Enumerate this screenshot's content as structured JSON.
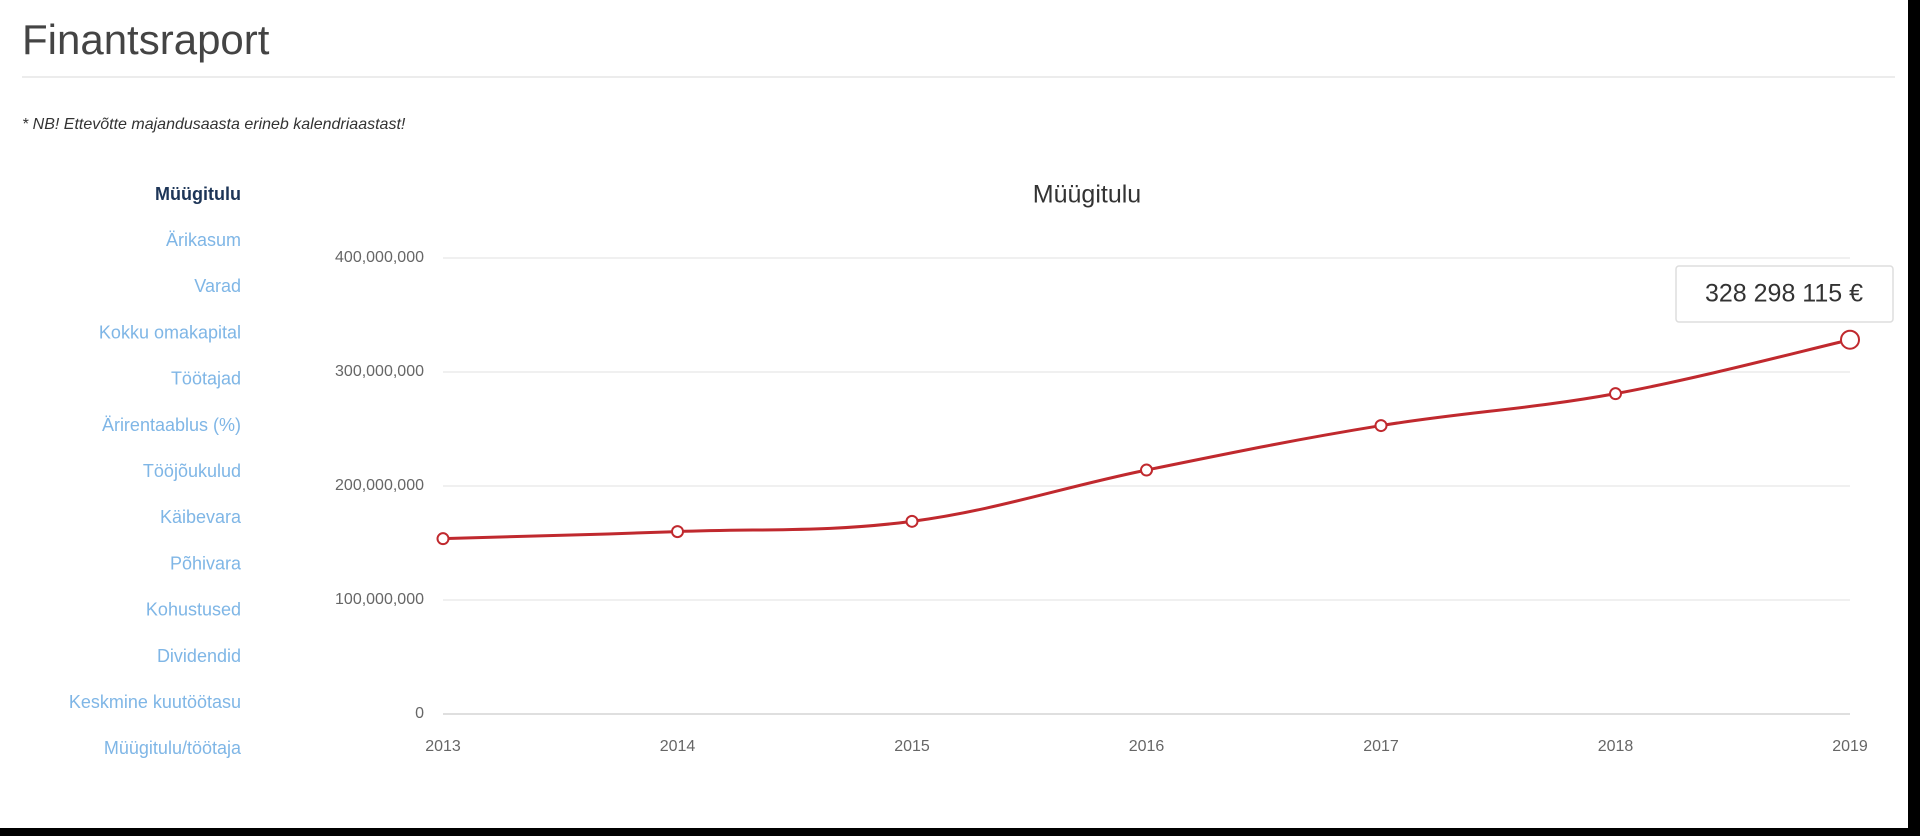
{
  "header": {
    "title": "Finantsraport",
    "note": "* NB! Ettevõtte majandusaasta erineb kalendriaastast!"
  },
  "menu": {
    "items": [
      "Müügitulu",
      "Ärikasum",
      "Varad",
      "Kokku omakapital",
      "Töötajad",
      "Ärirentaablus (%)",
      "Tööjõukulud",
      "Käibevara",
      "Põhivara",
      "Kohustused",
      "Dividendid",
      "Keskmine kuutöötasu",
      "Müügitulu/töötaja"
    ]
  },
  "chart_data": {
    "type": "line",
    "title": "Müügitulu",
    "categories": [
      "2013",
      "2014",
      "2015",
      "2016",
      "2017",
      "2018",
      "2019"
    ],
    "values": [
      153800000,
      160000000,
      169000000,
      214000000,
      253000000,
      281000000,
      328298115
    ],
    "value_labels": [
      null,
      null,
      null,
      null,
      null,
      null,
      "328 298 115 €"
    ],
    "color": "#c0292e",
    "ylim": [
      0,
      400000000
    ],
    "yticks": [
      0,
      {
        "value": 100000000,
        "label": "100,000,000"
      },
      {
        "value": 200000000,
        "label": "200,000,000"
      },
      {
        "value": 300000000,
        "label": "300,000,000"
      },
      {
        "value": 400000000,
        "label": "400,000,000"
      }
    ],
    "grid": true
  }
}
